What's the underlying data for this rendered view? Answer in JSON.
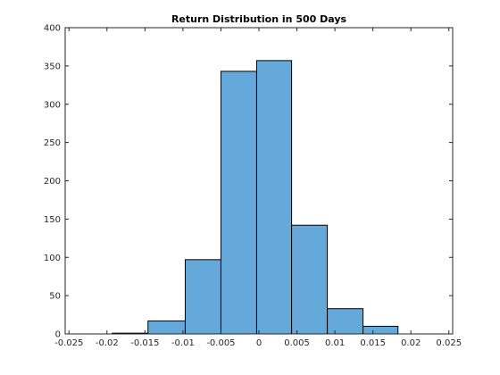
{
  "chart_data": {
    "type": "bar",
    "title": "Return Distribution in 500 Days",
    "xlabel": "",
    "ylabel": "",
    "xlim": [
      -0.0255,
      0.0255
    ],
    "ylim": [
      0,
      400
    ],
    "grid": false,
    "x_ticks": [
      -0.025,
      -0.02,
      -0.015,
      -0.01,
      -0.005,
      0,
      0.005,
      0.01,
      0.015,
      0.02,
      0.025
    ],
    "x_tick_labels": [
      "-0.025",
      "-0.02",
      "-0.015",
      "-0.01",
      "-0.005",
      "0",
      "0.005",
      "0.01",
      "0.015",
      "0.02",
      "0.025"
    ],
    "y_ticks": [
      0,
      50,
      100,
      150,
      200,
      250,
      300,
      350,
      400
    ],
    "y_tick_labels": [
      "0",
      "50",
      "100",
      "150",
      "200",
      "250",
      "300",
      "350",
      "400"
    ],
    "bins": [
      {
        "x0": -0.0193,
        "x1": -0.0146,
        "count": 1
      },
      {
        "x0": -0.0146,
        "x1": -0.0097,
        "count": 17
      },
      {
        "x0": -0.0097,
        "x1": -0.005,
        "count": 97
      },
      {
        "x0": -0.005,
        "x1": -0.0003,
        "count": 343
      },
      {
        "x0": -0.0003,
        "x1": 0.0043,
        "count": 357
      },
      {
        "x0": 0.0043,
        "x1": 0.009,
        "count": 142
      },
      {
        "x0": 0.009,
        "x1": 0.0137,
        "count": 33
      },
      {
        "x0": 0.0137,
        "x1": 0.0183,
        "count": 10
      }
    ],
    "colors": {
      "bar_fill": "#64a9d9",
      "bar_edge": "#000000",
      "axis": "#262626"
    }
  }
}
